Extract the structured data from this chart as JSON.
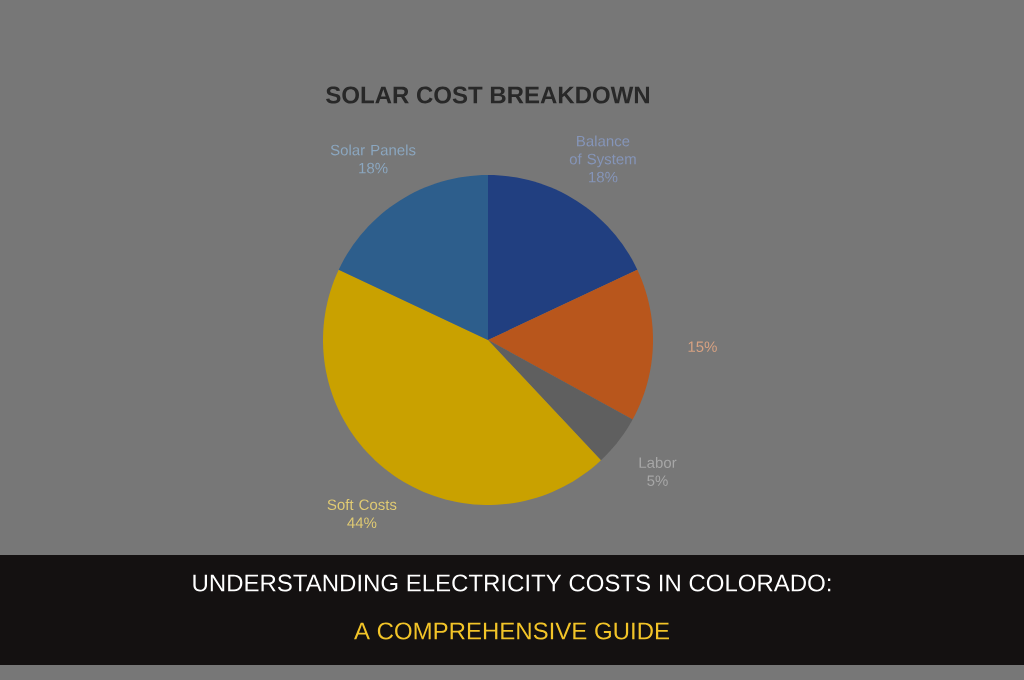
{
  "chart_data": {
    "type": "pie",
    "title": "SOLAR COST BREAKDOWN",
    "categories": [
      "Balance of System",
      null,
      "Labor",
      "Soft Costs",
      "Solar Panels"
    ],
    "values": [
      18,
      15,
      5,
      44,
      18
    ],
    "value_labels": [
      "18%",
      "15%",
      "5%",
      "44%",
      "18%"
    ],
    "colors": [
      "#213f80",
      "#b8561c",
      "#5f5f5f",
      "#c9a100",
      "#2d5e8c"
    ],
    "annotations": [
      "UNDERSTANDING ELECTRICITY COSTS IN COLORADO:",
      "A COMPREHENSIVE GUIDE"
    ]
  }
}
